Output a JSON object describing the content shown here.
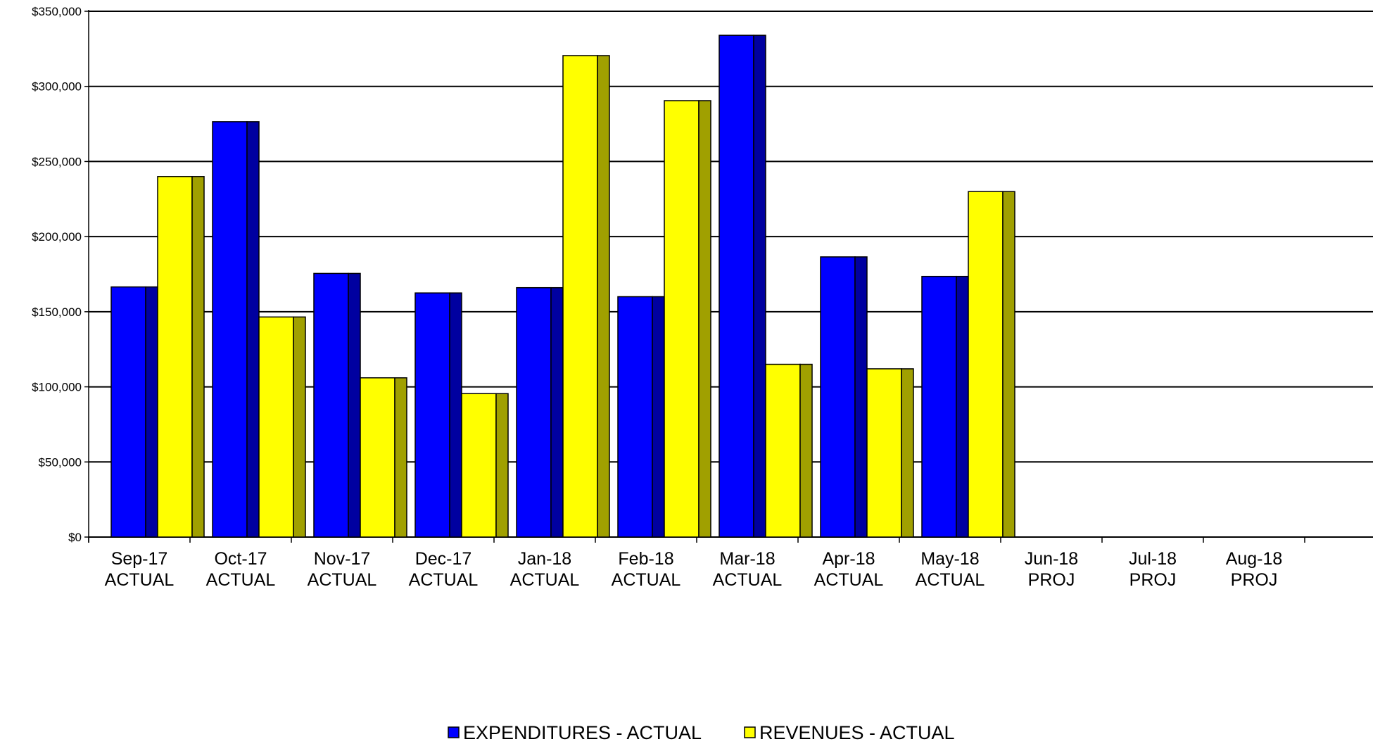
{
  "chart_data": {
    "type": "bar",
    "title": "",
    "xlabel": "",
    "ylabel": "",
    "ylim": [
      0,
      350000
    ],
    "y_ticks": [
      0,
      50000,
      100000,
      150000,
      200000,
      250000,
      300000,
      350000
    ],
    "y_tick_labels": [
      "$0",
      "$50,000",
      "$100,000",
      "$150,000",
      "$200,000",
      "$250,000",
      "$300,000",
      "$350,000"
    ],
    "grid": true,
    "legend_position": "bottom",
    "categories": [
      {
        "line1": "Sep-17",
        "line2": "ACTUAL"
      },
      {
        "line1": "Oct-17",
        "line2": "ACTUAL"
      },
      {
        "line1": "Nov-17",
        "line2": "ACTUAL"
      },
      {
        "line1": "Dec-17",
        "line2": "ACTUAL"
      },
      {
        "line1": "Jan-18",
        "line2": "ACTUAL"
      },
      {
        "line1": "Feb-18",
        "line2": "ACTUAL"
      },
      {
        "line1": "Mar-18",
        "line2": "ACTUAL"
      },
      {
        "line1": "Apr-18",
        "line2": "ACTUAL"
      },
      {
        "line1": "May-18",
        "line2": "ACTUAL"
      },
      {
        "line1": "Jun-18",
        "line2": "PROJ"
      },
      {
        "line1": "Jul-18",
        "line2": "PROJ"
      },
      {
        "line1": "Aug-18",
        "line2": "PROJ"
      }
    ],
    "series": [
      {
        "name": "EXPENDITURES - ACTUAL",
        "color": "#0000ff",
        "side_color": "#0000a0",
        "values": [
          166500,
          276500,
          175500,
          162500,
          166000,
          160000,
          334000,
          186500,
          173500,
          null,
          null,
          null
        ]
      },
      {
        "name": "REVENUES - ACTUAL",
        "color": "#ffff00",
        "side_color": "#a0a000",
        "values": [
          240000,
          146500,
          106000,
          95500,
          320500,
          290500,
          115000,
          112000,
          230000,
          null,
          null,
          null
        ]
      }
    ]
  }
}
